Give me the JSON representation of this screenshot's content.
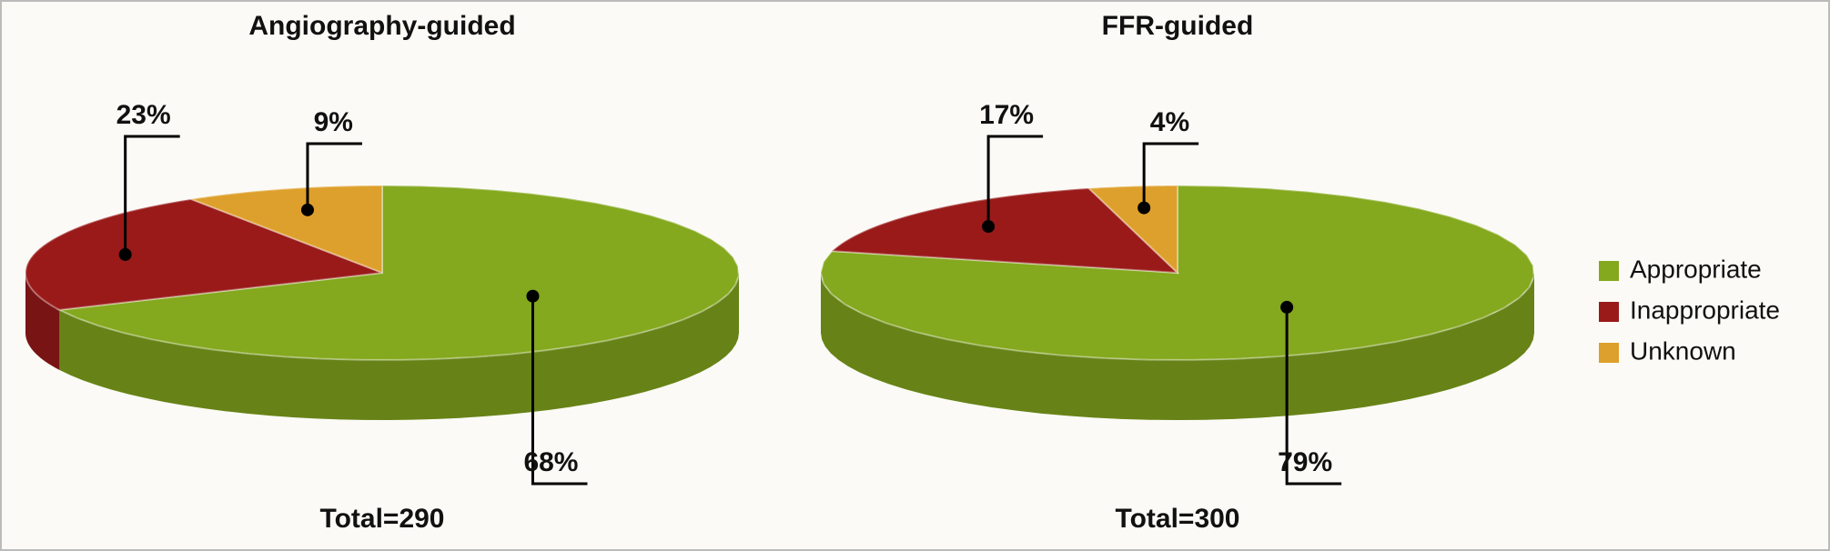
{
  "chart_data": [
    {
      "type": "pie",
      "title": "Angiography-guided",
      "categories": [
        "Appropriate",
        "Inappropriate",
        "Unknown"
      ],
      "values": [
        68,
        23,
        9
      ],
      "value_labels": [
        "68%",
        "23%",
        "9%"
      ],
      "colors": [
        "#84a81e",
        "#9a1a1a",
        "#dea02c"
      ],
      "note": "Total=290"
    },
    {
      "type": "pie",
      "title": "FFR-guided",
      "categories": [
        "Appropriate",
        "Inappropriate",
        "Unknown"
      ],
      "values": [
        79,
        17,
        4
      ],
      "value_labels": [
        "79%",
        "17%",
        "4%"
      ],
      "colors": [
        "#84a81e",
        "#9a1a1a",
        "#dea02c"
      ],
      "note": "Total=300",
      "legend": "right"
    }
  ]
}
